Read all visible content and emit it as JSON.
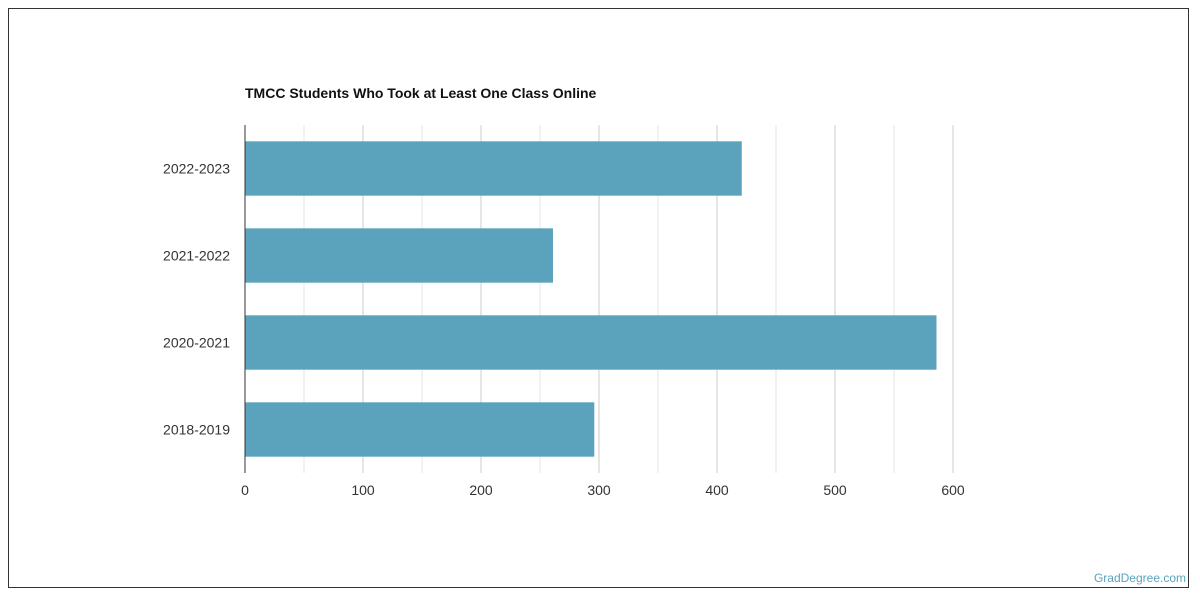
{
  "chart_data": {
    "type": "bar",
    "orientation": "horizontal",
    "title": "TMCC Students Who Took at Least One Class Online",
    "categories": [
      "2022-2023",
      "2021-2022",
      "2020-2021",
      "2018-2019"
    ],
    "values": [
      421,
      261,
      586,
      296
    ],
    "xlabel": "",
    "ylabel": "",
    "xlim": [
      0,
      600
    ],
    "xticks": [
      "0",
      "100",
      "200",
      "300",
      "400",
      "500",
      "600"
    ],
    "grid": true,
    "bar_color": "#5ba3bd",
    "grid_color": "#dddddd",
    "axis_color": "#333333"
  },
  "watermark": "GradDegree.com"
}
